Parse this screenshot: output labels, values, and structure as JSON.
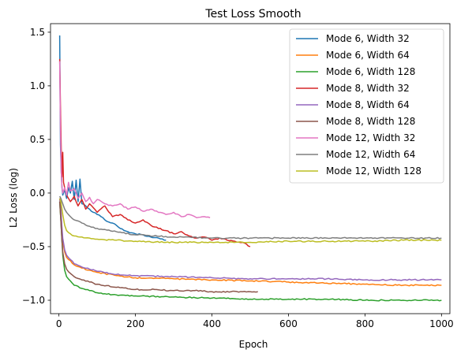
{
  "chart_data": {
    "type": "line",
    "title": "Test Loss Smooth",
    "xlabel": "Epoch",
    "ylabel": "L2 Loss (log)",
    "xlim": [
      -22,
      1022
    ],
    "ylim": [
      -1.125,
      1.58
    ],
    "x_ticks": [
      0,
      200,
      400,
      600,
      800,
      1000
    ],
    "y_ticks": [
      -1.0,
      -0.5,
      0.0,
      0.5,
      1.0,
      1.5
    ],
    "x_tick_labels": [
      "0",
      "200",
      "400",
      "600",
      "800",
      "1000"
    ],
    "y_tick_labels": [
      "−1.0",
      "−0.5",
      "0.0",
      "0.5",
      "1.0",
      "1.5"
    ],
    "grid": false,
    "legend_position": "top-right",
    "series": [
      {
        "name": "Mode 6, Width 32",
        "color": "#1f77b4",
        "x": [
          2,
          4,
          6,
          8,
          10,
          15,
          20,
          25,
          30,
          35,
          40,
          45,
          50,
          55,
          60,
          70,
          80,
          90,
          100,
          110,
          120,
          130,
          140,
          150,
          160,
          180,
          200,
          220,
          240,
          260,
          280
        ],
        "y": [
          1.47,
          0.45,
          0.2,
          0.05,
          -0.02,
          0.03,
          -0.05,
          0.05,
          0.0,
          0.11,
          -0.06,
          0.12,
          -0.08,
          0.13,
          -0.1,
          -0.12,
          -0.15,
          -0.18,
          -0.2,
          -0.22,
          -0.25,
          -0.27,
          -0.28,
          -0.3,
          -0.33,
          -0.36,
          -0.38,
          -0.39,
          -0.41,
          -0.42,
          -0.44
        ]
      },
      {
        "name": "Mode 6, Width 64",
        "color": "#ff7f0e",
        "x": [
          2,
          5,
          8,
          10,
          15,
          20,
          30,
          40,
          60,
          80,
          100,
          150,
          200,
          300,
          400,
          500,
          600,
          700,
          800,
          900,
          1000
        ],
        "y": [
          -0.05,
          -0.15,
          -0.35,
          -0.45,
          -0.55,
          -0.6,
          -0.63,
          -0.67,
          -0.7,
          -0.72,
          -0.74,
          -0.77,
          -0.79,
          -0.8,
          -0.81,
          -0.82,
          -0.83,
          -0.84,
          -0.85,
          -0.86,
          -0.86
        ]
      },
      {
        "name": "Mode 6, Width 128",
        "color": "#2ca02c",
        "x": [
          2,
          5,
          8,
          10,
          15,
          20,
          30,
          40,
          60,
          80,
          100,
          150,
          200,
          300,
          400,
          500,
          600,
          700,
          800,
          900,
          1000
        ],
        "y": [
          -0.08,
          -0.25,
          -0.45,
          -0.58,
          -0.72,
          -0.78,
          -0.82,
          -0.86,
          -0.89,
          -0.91,
          -0.93,
          -0.95,
          -0.96,
          -0.97,
          -0.98,
          -0.99,
          -0.99,
          -0.99,
          -1.0,
          -1.0,
          -1.0
        ]
      },
      {
        "name": "Mode 8, Width 32",
        "color": "#d62728",
        "x": [
          2,
          4,
          6,
          8,
          10,
          12,
          15,
          20,
          25,
          30,
          40,
          50,
          60,
          70,
          80,
          100,
          120,
          140,
          160,
          180,
          200,
          220,
          240,
          260,
          280,
          300,
          320,
          340,
          360,
          380,
          400,
          420,
          440,
          460,
          480,
          500
        ],
        "y": [
          1.25,
          0.8,
          0.42,
          0.15,
          0.38,
          0.1,
          0.05,
          -0.02,
          -0.05,
          -0.08,
          -0.03,
          -0.12,
          -0.06,
          -0.15,
          -0.1,
          -0.18,
          -0.12,
          -0.22,
          -0.2,
          -0.25,
          -0.28,
          -0.25,
          -0.3,
          -0.33,
          -0.35,
          -0.38,
          -0.36,
          -0.4,
          -0.42,
          -0.41,
          -0.44,
          -0.42,
          -0.44,
          -0.45,
          -0.46,
          -0.5
        ]
      },
      {
        "name": "Mode 8, Width 64",
        "color": "#9467bd",
        "x": [
          2,
          5,
          8,
          10,
          15,
          20,
          30,
          40,
          60,
          80,
          100,
          150,
          200,
          300,
          400,
          500,
          600,
          700,
          800,
          900,
          1000
        ],
        "y": [
          -0.05,
          -0.15,
          -0.33,
          -0.42,
          -0.53,
          -0.58,
          -0.62,
          -0.66,
          -0.69,
          -0.71,
          -0.73,
          -0.76,
          -0.77,
          -0.78,
          -0.79,
          -0.8,
          -0.8,
          -0.8,
          -0.81,
          -0.81,
          -0.81
        ]
      },
      {
        "name": "Mode 8, Width 128",
        "color": "#8c564b",
        "x": [
          2,
          5,
          8,
          10,
          15,
          20,
          30,
          40,
          60,
          80,
          100,
          150,
          200,
          250,
          300,
          350,
          400,
          450,
          500,
          520
        ],
        "y": [
          -0.08,
          -0.25,
          -0.45,
          -0.55,
          -0.66,
          -0.71,
          -0.75,
          -0.78,
          -0.81,
          -0.83,
          -0.85,
          -0.88,
          -0.9,
          -0.9,
          -0.91,
          -0.91,
          -0.92,
          -0.92,
          -0.92,
          -0.92
        ]
      },
      {
        "name": "Mode 12, Width 32",
        "color": "#e377c2",
        "x": [
          2,
          4,
          6,
          8,
          10,
          15,
          20,
          25,
          30,
          40,
          50,
          60,
          70,
          80,
          90,
          100,
          120,
          140,
          160,
          180,
          200,
          220,
          240,
          260,
          280,
          300,
          320,
          340,
          360,
          380,
          395
        ],
        "y": [
          1.23,
          0.6,
          0.2,
          0.05,
          0.0,
          0.05,
          -0.02,
          0.1,
          0.02,
          0.04,
          -0.05,
          0.0,
          -0.08,
          -0.04,
          -0.1,
          -0.06,
          -0.1,
          -0.12,
          -0.1,
          -0.15,
          -0.13,
          -0.17,
          -0.15,
          -0.18,
          -0.2,
          -0.18,
          -0.22,
          -0.2,
          -0.23,
          -0.22,
          -0.23
        ]
      },
      {
        "name": "Mode 12, Width 64",
        "color": "#7f7f7f",
        "x": [
          2,
          5,
          8,
          10,
          15,
          20,
          30,
          40,
          60,
          80,
          100,
          150,
          200,
          300,
          400,
          500,
          600,
          700,
          800,
          900,
          1000
        ],
        "y": [
          -0.03,
          -0.05,
          -0.08,
          -0.1,
          -0.15,
          -0.18,
          -0.22,
          -0.25,
          -0.28,
          -0.31,
          -0.33,
          -0.36,
          -0.39,
          -0.41,
          -0.42,
          -0.42,
          -0.42,
          -0.42,
          -0.42,
          -0.42,
          -0.42
        ]
      },
      {
        "name": "Mode 12, Width 128",
        "color": "#bcbd22",
        "x": [
          2,
          5,
          8,
          10,
          15,
          20,
          30,
          40,
          60,
          80,
          100,
          150,
          200,
          300,
          400,
          500,
          600,
          700,
          800,
          900,
          1000
        ],
        "y": [
          -0.05,
          -0.08,
          -0.15,
          -0.2,
          -0.3,
          -0.35,
          -0.38,
          -0.4,
          -0.41,
          -0.42,
          -0.43,
          -0.44,
          -0.45,
          -0.46,
          -0.46,
          -0.46,
          -0.45,
          -0.45,
          -0.45,
          -0.44,
          -0.44
        ]
      }
    ]
  }
}
